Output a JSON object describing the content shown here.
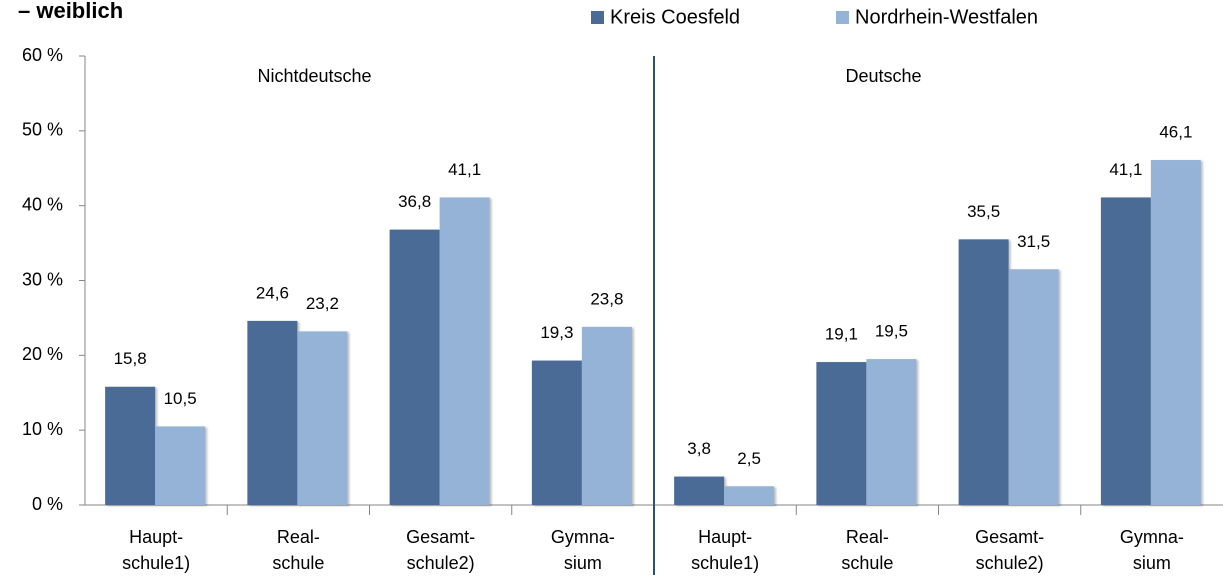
{
  "chart_data": {
    "type": "bar",
    "title": "– weiblich",
    "categories": [
      "Haupt-\nschule1)",
      "Real-\nschule",
      "Gesamt-\nschule2)",
      "Gymna-\nsium",
      "Haupt-\nschule1)",
      "Real-\nschule",
      "Gesamt-\nschule2)",
      "Gymna-\nsium"
    ],
    "series": [
      {
        "name": "Kreis Coesfeld",
        "color": "#4a6b96",
        "values": [
          15.8,
          24.6,
          36.8,
          19.3,
          3.8,
          19.1,
          35.5,
          41.1
        ],
        "value_labels": [
          "15,8",
          "24,6",
          "36,8",
          "19,3",
          "3,8",
          "19,1",
          "35,5",
          "41,1"
        ]
      },
      {
        "name": "Nordrhein-Westfalen",
        "color": "#95b3d7",
        "values": [
          10.5,
          23.2,
          41.1,
          23.8,
          2.5,
          19.5,
          31.5,
          46.1
        ],
        "value_labels": [
          "10,5",
          "23,2",
          "41,1",
          "23,8",
          "2,5",
          "19,5",
          "31,5",
          "46,1"
        ]
      }
    ],
    "annotations": [
      "Nichtdeutsche",
      "Deutsche"
    ],
    "ylim": [
      0,
      60
    ],
    "yticks": [
      {
        "value": 0,
        "label": "0 %"
      },
      {
        "value": 10,
        "label": "10 %"
      },
      {
        "value": 20,
        "label": "20 %"
      },
      {
        "value": 30,
        "label": "30 %"
      },
      {
        "value": 40,
        "label": "40 %"
      },
      {
        "value": 50,
        "label": "50 %"
      },
      {
        "value": 60,
        "label": "60 %"
      }
    ],
    "grid": false,
    "legend": "top-right"
  }
}
